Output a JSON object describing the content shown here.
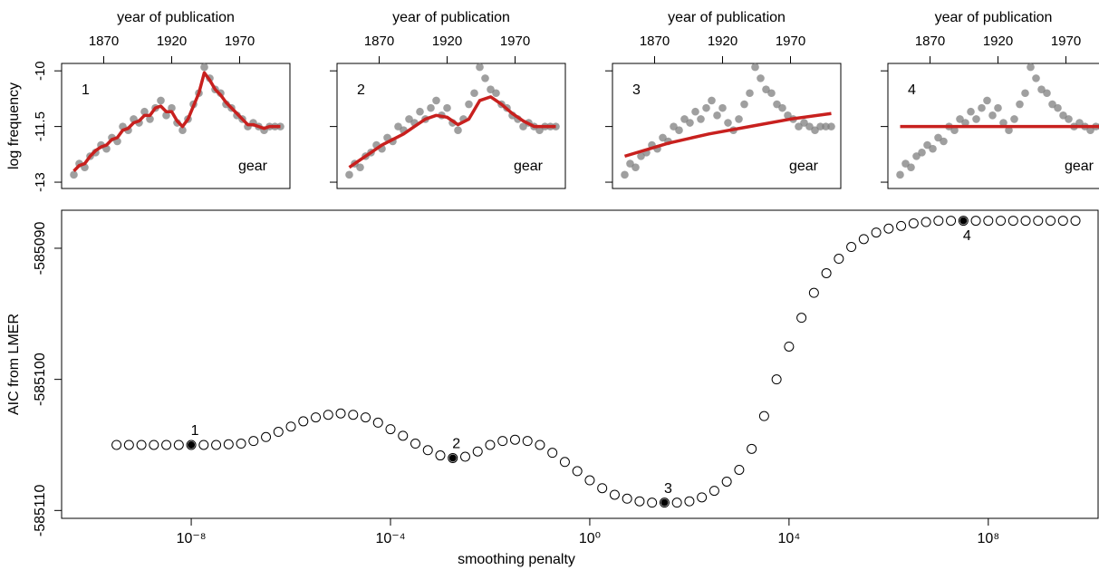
{
  "chart_data": [
    {
      "type": "scatter",
      "label": "1",
      "annotation": "gear",
      "xlabel": "year of publication",
      "ylabel": "log frequency",
      "x_axis": "top",
      "show_ytick_labels": true,
      "x": [
        1848,
        1852,
        1856,
        1860,
        1864,
        1868,
        1872,
        1876,
        1880,
        1884,
        1888,
        1892,
        1896,
        1900,
        1904,
        1908,
        1912,
        1916,
        1920,
        1924,
        1928,
        1932,
        1936,
        1940,
        1944,
        1948,
        1952,
        1956,
        1960,
        1964,
        1968,
        1972,
        1976,
        1980,
        1984,
        1988,
        1992,
        1996,
        2000
      ],
      "values": [
        -12.8,
        -12.5,
        -12.6,
        -12.3,
        -12.2,
        -12.0,
        -12.1,
        -11.8,
        -11.9,
        -11.5,
        -11.6,
        -11.3,
        -11.4,
        -11.1,
        -11.3,
        -11.0,
        -10.8,
        -11.2,
        -11.0,
        -11.4,
        -11.6,
        -11.3,
        -10.9,
        -10.6,
        -9.9,
        -10.2,
        -10.5,
        -10.6,
        -10.9,
        -11.0,
        -11.2,
        -11.3,
        -11.5,
        -11.4,
        -11.5,
        -11.6,
        -11.5,
        -11.5,
        -11.5
      ],
      "fit_x": [
        1848,
        1852,
        1856,
        1860,
        1864,
        1868,
        1872,
        1876,
        1880,
        1884,
        1888,
        1892,
        1896,
        1900,
        1904,
        1908,
        1912,
        1916,
        1920,
        1924,
        1928,
        1932,
        1936,
        1940,
        1944,
        1948,
        1952,
        1956,
        1960,
        1964,
        1968,
        1972,
        1976,
        1980,
        1984,
        1988,
        1992,
        1996,
        2000
      ],
      "fit": [
        -12.7,
        -12.55,
        -12.5,
        -12.3,
        -12.15,
        -12.05,
        -12.0,
        -11.85,
        -11.8,
        -11.6,
        -11.55,
        -11.4,
        -11.35,
        -11.2,
        -11.2,
        -11.0,
        -10.95,
        -11.1,
        -11.1,
        -11.35,
        -11.5,
        -11.3,
        -10.95,
        -10.6,
        -10.05,
        -10.25,
        -10.5,
        -10.65,
        -10.85,
        -11.0,
        -11.15,
        -11.3,
        -11.45,
        -11.45,
        -11.5,
        -11.55,
        -11.5,
        -11.5,
        -11.5
      ],
      "color": "#7f7f7f",
      "fit_color": "#c8201e",
      "xlim": [
        1839,
        2007
      ],
      "ylim": [
        -13.17,
        -9.8
      ],
      "xticks": [
        1870,
        1920,
        1970
      ],
      "yticks": [
        -10,
        -11.5,
        -13
      ]
    },
    {
      "type": "scatter",
      "label": "2",
      "annotation": "gear",
      "xlabel": "year of publication",
      "x_axis": "top",
      "show_ytick_labels": false,
      "x": [
        1848,
        1852,
        1856,
        1860,
        1864,
        1868,
        1872,
        1876,
        1880,
        1884,
        1888,
        1892,
        1896,
        1900,
        1904,
        1908,
        1912,
        1916,
        1920,
        1924,
        1928,
        1932,
        1936,
        1940,
        1944,
        1948,
        1952,
        1956,
        1960,
        1964,
        1968,
        1972,
        1976,
        1980,
        1984,
        1988,
        1992,
        1996,
        2000
      ],
      "values": [
        -12.8,
        -12.5,
        -12.6,
        -12.3,
        -12.2,
        -12.0,
        -12.1,
        -11.8,
        -11.9,
        -11.5,
        -11.6,
        -11.3,
        -11.4,
        -11.1,
        -11.3,
        -11.0,
        -10.8,
        -11.2,
        -11.0,
        -11.4,
        -11.6,
        -11.3,
        -10.9,
        -10.6,
        -9.9,
        -10.2,
        -10.5,
        -10.6,
        -10.9,
        -11.0,
        -11.2,
        -11.3,
        -11.5,
        -11.4,
        -11.5,
        -11.6,
        -11.5,
        -11.5,
        -11.5
      ],
      "fit_x": [
        1848,
        1856,
        1864,
        1872,
        1880,
        1888,
        1896,
        1904,
        1912,
        1920,
        1928,
        1936,
        1944,
        1952,
        1960,
        1968,
        1976,
        1984,
        1992,
        2000
      ],
      "fit": [
        -12.6,
        -12.4,
        -12.2,
        -12.0,
        -11.85,
        -11.7,
        -11.5,
        -11.3,
        -11.2,
        -11.25,
        -11.45,
        -11.3,
        -10.8,
        -10.7,
        -10.9,
        -11.15,
        -11.35,
        -11.5,
        -11.5,
        -11.5
      ],
      "color": "#7f7f7f",
      "fit_color": "#c8201e",
      "xlim": [
        1839,
        2007
      ],
      "ylim": [
        -13.17,
        -9.8
      ],
      "xticks": [
        1870,
        1920,
        1970
      ],
      "yticks": [
        -10,
        -11.5,
        -13
      ]
    },
    {
      "type": "scatter",
      "label": "3",
      "annotation": "gear",
      "xlabel": "year of publication",
      "x_axis": "top",
      "show_ytick_labels": false,
      "x": [
        1848,
        1852,
        1856,
        1860,
        1864,
        1868,
        1872,
        1876,
        1880,
        1884,
        1888,
        1892,
        1896,
        1900,
        1904,
        1908,
        1912,
        1916,
        1920,
        1924,
        1928,
        1932,
        1936,
        1940,
        1944,
        1948,
        1952,
        1956,
        1960,
        1964,
        1968,
        1972,
        1976,
        1980,
        1984,
        1988,
        1992,
        1996,
        2000
      ],
      "values": [
        -12.8,
        -12.5,
        -12.6,
        -12.3,
        -12.2,
        -12.0,
        -12.1,
        -11.8,
        -11.9,
        -11.5,
        -11.6,
        -11.3,
        -11.4,
        -11.1,
        -11.3,
        -11.0,
        -10.8,
        -11.2,
        -11.0,
        -11.4,
        -11.6,
        -11.3,
        -10.9,
        -10.6,
        -9.9,
        -10.2,
        -10.5,
        -10.6,
        -10.9,
        -11.0,
        -11.2,
        -11.3,
        -11.5,
        -11.4,
        -11.5,
        -11.6,
        -11.5,
        -11.5,
        -11.5
      ],
      "fit_x": [
        1848,
        1880,
        1910,
        1940,
        1970,
        2000
      ],
      "fit": [
        -12.3,
        -11.95,
        -11.7,
        -11.5,
        -11.3,
        -11.15
      ],
      "color": "#7f7f7f",
      "fit_color": "#c8201e",
      "xlim": [
        1839,
        2007
      ],
      "ylim": [
        -13.17,
        -9.8
      ],
      "xticks": [
        1870,
        1920,
        1970
      ],
      "yticks": [
        -10,
        -11.5,
        -13
      ]
    },
    {
      "type": "scatter",
      "label": "4",
      "annotation": "gear",
      "xlabel": "year of publication",
      "x_axis": "top",
      "show_ytick_labels": false,
      "x": [
        1848,
        1852,
        1856,
        1860,
        1864,
        1868,
        1872,
        1876,
        1880,
        1884,
        1888,
        1892,
        1896,
        1900,
        1904,
        1908,
        1912,
        1916,
        1920,
        1924,
        1928,
        1932,
        1936,
        1940,
        1944,
        1948,
        1952,
        1956,
        1960,
        1964,
        1968,
        1972,
        1976,
        1980,
        1984,
        1988,
        1992,
        1996,
        2000
      ],
      "values": [
        -12.8,
        -12.5,
        -12.6,
        -12.3,
        -12.2,
        -12.0,
        -12.1,
        -11.8,
        -11.9,
        -11.5,
        -11.6,
        -11.3,
        -11.4,
        -11.1,
        -11.3,
        -11.0,
        -10.8,
        -11.2,
        -11.0,
        -11.4,
        -11.6,
        -11.3,
        -10.9,
        -10.6,
        -9.9,
        -10.2,
        -10.5,
        -10.6,
        -10.9,
        -11.0,
        -11.2,
        -11.3,
        -11.5,
        -11.4,
        -11.5,
        -11.6,
        -11.5,
        -11.5,
        -11.5
      ],
      "fit_x": [
        1848,
        2000
      ],
      "fit": [
        -11.5,
        -11.5
      ],
      "color": "#7f7f7f",
      "fit_color": "#c8201e",
      "xlim": [
        1839,
        2007
      ],
      "ylim": [
        -13.17,
        -9.8
      ],
      "xticks": [
        1870,
        1920,
        1970
      ],
      "yticks": [
        -10,
        -11.5,
        -13
      ]
    },
    {
      "type": "scatter",
      "xlabel": "smoothing penalty",
      "ylabel": "AIC from LMER",
      "x_axis": "bottom",
      "log_x": true,
      "show_ytick_labels": true,
      "marker": "open",
      "x": [
        3.162e-10,
        5.623e-10,
        1e-09,
        1.778e-09,
        3.162e-09,
        5.623e-09,
        1e-08,
        1.778e-08,
        3.162e-08,
        5.623e-08,
        1e-07,
        1.778e-07,
        3.162e-07,
        5.623e-07,
        1e-06,
        1.778e-06,
        3.162e-06,
        5.623e-06,
        1e-05,
        1.778e-05,
        3.162e-05,
        5.623e-05,
        0.0001,
        0.0001778,
        0.0003162,
        0.0005623,
        0.001,
        0.001778,
        0.003162,
        0.005623,
        0.01,
        0.01778,
        0.03162,
        0.05623,
        0.1,
        0.1778,
        0.3162,
        0.5623,
        1,
        1.778,
        3.162,
        5.623,
        10,
        17.78,
        31.62,
        56.23,
        100,
        177.8,
        316.2,
        562.3,
        1000,
        1778,
        3162,
        5623,
        10000.0,
        17780.0,
        31620.0,
        56230.0,
        100000.0,
        177800.0,
        316200.0,
        562300.0,
        1000000.0,
        1778000.0,
        3162000.0,
        5623000.0,
        10000000.0,
        17780000.0,
        31620000.0,
        56230000.0,
        100000000.0,
        177800000.0,
        316200000.0,
        562300000.0,
        1000000000.0,
        1778000000.0,
        3162000000.0,
        5623000000.0
      ],
      "values": [
        -585105.0,
        -585105.0,
        -585105.0,
        -585105.0,
        -585105.0,
        -585105.0,
        -585105.0,
        -585105.0,
        -585105.0,
        -585104.95,
        -585104.9,
        -585104.7,
        -585104.4,
        -585104.0,
        -585103.6,
        -585103.2,
        -585102.9,
        -585102.7,
        -585102.6,
        -585102.7,
        -585102.9,
        -585103.3,
        -585103.8,
        -585104.3,
        -585104.9,
        -585105.4,
        -585105.8,
        -585106.0,
        -585105.9,
        -585105.5,
        -585105.0,
        -585104.7,
        -585104.6,
        -585104.7,
        -585105.0,
        -585105.6,
        -585106.3,
        -585107.0,
        -585107.7,
        -585108.3,
        -585108.8,
        -585109.1,
        -585109.3,
        -585109.4,
        -585109.4,
        -585109.4,
        -585109.3,
        -585109.0,
        -585108.5,
        -585107.8,
        -585106.9,
        -585105.3,
        -585102.8,
        -585100.0,
        -585097.5,
        -585095.3,
        -585093.4,
        -585091.9,
        -585090.8,
        -585089.9,
        -585089.3,
        -585088.8,
        -585088.5,
        -585088.3,
        -585088.1,
        -585088.0,
        -585087.9,
        -585087.9,
        -585087.9,
        -585087.9,
        -585087.9,
        -585087.9,
        -585087.9,
        -585087.9,
        -585087.9,
        -585087.9,
        -585087.9,
        -585087.9
      ],
      "annotations": [
        {
          "label": "1",
          "x": 1e-08,
          "y": -585105.0,
          "position": "above"
        },
        {
          "label": "2",
          "x": 0.001778,
          "y": -585106.0,
          "position": "above"
        },
        {
          "label": "3",
          "x": 31.62,
          "y": -585109.4,
          "position": "above"
        },
        {
          "label": "4",
          "x": 31620000.0,
          "y": -585087.9,
          "position": "below"
        }
      ],
      "color": "#000000",
      "highlight_color": "#000000",
      "xlim": [
        2.5e-11,
        16000000000.0
      ],
      "ylim": [
        -585110.6,
        -585087.1
      ],
      "xticks": [
        {
          "value": 1e-08,
          "label": "10⁻⁸"
        },
        {
          "value": 0.0001,
          "label": "10⁻⁴"
        },
        {
          "value": 1,
          "label": "10⁰"
        },
        {
          "value": 10000.0,
          "label": "10⁴"
        },
        {
          "value": 100000000.0,
          "label": "10⁸"
        }
      ],
      "yticks": [
        -585090,
        -585100,
        -585110
      ]
    }
  ]
}
